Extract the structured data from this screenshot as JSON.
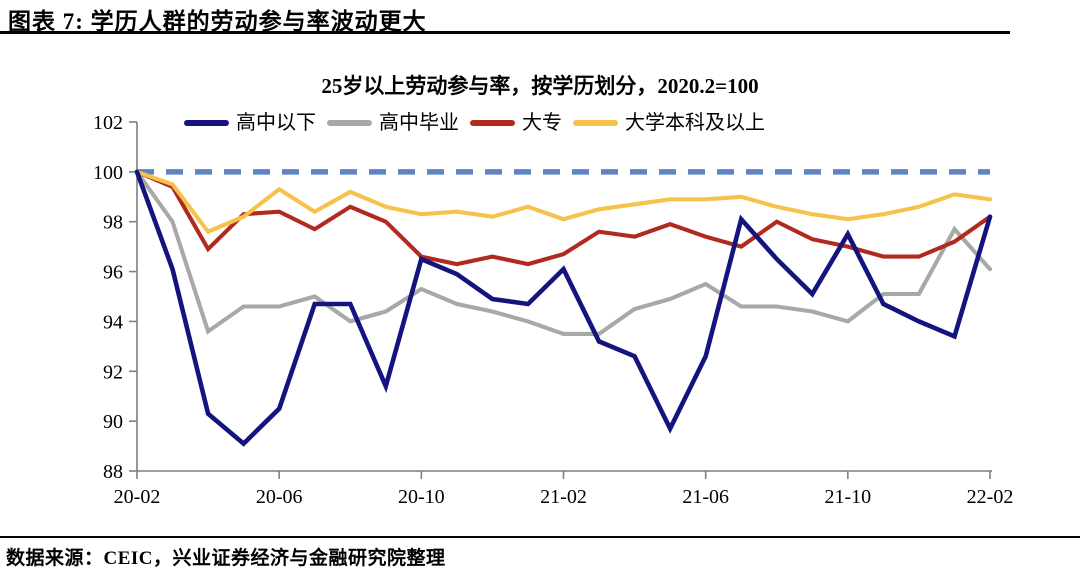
{
  "figure": {
    "label_title": "图表 7:  学历人群的劳动参与率波动更大"
  },
  "footer": {
    "source_text": "数据来源：CEIC，兴业证券经济与金融研究院整理"
  },
  "chart_data": {
    "type": "line",
    "title": "25岁以上劳动参与率，按学历划分，2020.2=100",
    "x": [
      "20-02",
      "20-03",
      "20-04",
      "20-05",
      "20-06",
      "20-07",
      "20-08",
      "20-09",
      "20-10",
      "20-11",
      "20-12",
      "21-01",
      "21-02",
      "21-03",
      "21-04",
      "21-05",
      "21-06",
      "21-07",
      "21-08",
      "21-09",
      "21-10",
      "21-11",
      "21-12",
      "22-01",
      "22-02"
    ],
    "x_tick_labels": [
      "20-02",
      "20-06",
      "20-10",
      "21-02",
      "21-06",
      "21-10",
      "22-02"
    ],
    "y_ticks": [
      88,
      90,
      92,
      94,
      96,
      98,
      100,
      102
    ],
    "ylim": [
      88,
      102
    ],
    "grid": false,
    "legend_position": "top",
    "axis_color": "#7F7F7F",
    "baseline": {
      "value": 100,
      "style": "dashed",
      "color": "#5E84C2"
    },
    "series": [
      {
        "name": "高中以下",
        "color": "#14147E",
        "values": [
          100,
          96.1,
          90.3,
          89.1,
          90.5,
          94.7,
          94.7,
          91.4,
          96.5,
          95.9,
          94.9,
          94.7,
          96.1,
          93.2,
          92.6,
          89.7,
          92.6,
          98.1,
          96.5,
          95.1,
          97.5,
          94.7,
          94.0,
          93.4,
          98.2
        ]
      },
      {
        "name": "高中毕业",
        "color": "#A8A8A8",
        "values": [
          100,
          98.0,
          93.6,
          94.6,
          94.6,
          95.0,
          94.0,
          94.4,
          95.3,
          94.7,
          94.4,
          94.0,
          93.5,
          93.5,
          94.5,
          94.9,
          95.5,
          94.6,
          94.6,
          94.4,
          94.0,
          95.1,
          95.1,
          97.7,
          96.1
        ]
      },
      {
        "name": "大专",
        "color": "#B02A1E",
        "values": [
          100,
          99.4,
          96.9,
          98.3,
          98.4,
          97.7,
          98.6,
          98.0,
          96.6,
          96.3,
          96.6,
          96.3,
          96.7,
          97.6,
          97.4,
          97.9,
          97.4,
          97.0,
          98.0,
          97.3,
          97.0,
          96.6,
          96.6,
          97.2,
          98.2
        ]
      },
      {
        "name": "大学本科及以上",
        "color": "#F7C24B",
        "values": [
          100,
          99.5,
          97.6,
          98.2,
          99.3,
          98.4,
          99.2,
          98.6,
          98.3,
          98.4,
          98.2,
          98.6,
          98.1,
          98.5,
          98.7,
          98.9,
          98.9,
          99.0,
          98.6,
          98.3,
          98.1,
          98.3,
          98.6,
          99.1,
          98.9
        ]
      }
    ]
  }
}
